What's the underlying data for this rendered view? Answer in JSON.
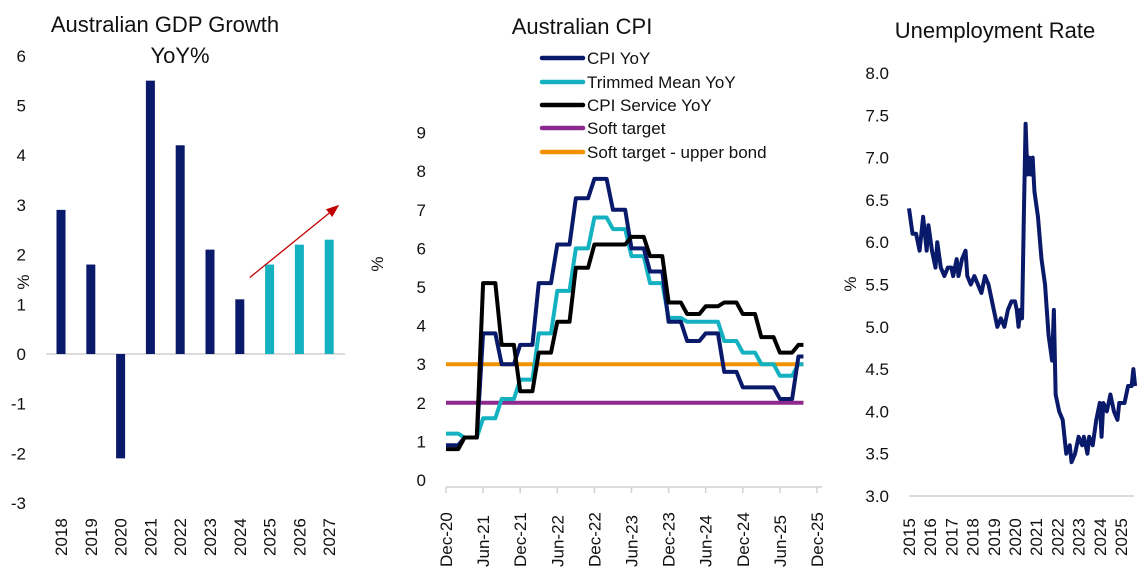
{
  "chart_data": [
    {
      "type": "bar",
      "title": [
        "Australian GDP Growth",
        "YoY%"
      ],
      "ylabel": "%",
      "ylim": [
        -3,
        6
      ],
      "yticks": [
        "-3",
        "-2",
        "-1",
        "0",
        "1",
        "2",
        "3",
        "4",
        "5",
        "6"
      ],
      "categories": [
        "2018",
        "2019",
        "2020",
        "2021",
        "2022",
        "2023",
        "2024",
        "2025",
        "2026",
        "2027"
      ],
      "values": [
        2.9,
        1.8,
        -2.1,
        5.5,
        4.2,
        2.1,
        1.1,
        1.8,
        2.2,
        2.3
      ],
      "bar_colors": [
        "#0a1a6b",
        "#0a1a6b",
        "#0a1a6b",
        "#0a1a6b",
        "#0a1a6b",
        "#0a1a6b",
        "#0a1a6b",
        "#14b1c1",
        "#14b1c1",
        "#14b1c1"
      ],
      "annotation": {
        "type": "arrow",
        "color": "#c00000",
        "from": {
          "x": "2024",
          "y": 1.5
        },
        "to": {
          "x": "2027",
          "y": 3.1
        }
      },
      "grid": false
    },
    {
      "type": "line",
      "title": "Australian CPI",
      "ylabel": "%",
      "ylim": [
        0,
        9
      ],
      "yticks": [
        "0",
        "1",
        "2",
        "3",
        "4",
        "5",
        "6",
        "7",
        "8",
        "9"
      ],
      "xticks": [
        "Dec-20",
        "Jun-21",
        "Dec-21",
        "Jun-22",
        "Dec-22",
        "Jun-23",
        "Dec-23",
        "Jun-24",
        "Dec-24",
        "Jun-25",
        "Dec-25"
      ],
      "x": [
        "Dec-20",
        "Mar-21",
        "Jun-21",
        "Sep-21",
        "Dec-21",
        "Mar-22",
        "Jun-22",
        "Sep-22",
        "Dec-22",
        "Mar-23",
        "Jun-23",
        "Sep-23",
        "Dec-23",
        "Mar-24",
        "Jun-24",
        "Sep-24",
        "Dec-24",
        "Mar-25",
        "Jun-25",
        "Sep-25"
      ],
      "legend_position": "top",
      "series": [
        {
          "name": "CPI YoY",
          "color": "#0a1a6b",
          "values": [
            0.9,
            1.1,
            3.8,
            3.0,
            3.5,
            5.1,
            6.1,
            7.3,
            7.8,
            7.0,
            6.0,
            5.4,
            4.1,
            3.6,
            3.8,
            2.8,
            2.4,
            2.4,
            2.1,
            3.2
          ]
        },
        {
          "name": "Trimmed Mean YoY",
          "color": "#14b1c1",
          "values": [
            1.2,
            1.1,
            1.6,
            2.1,
            2.6,
            3.8,
            4.9,
            6.0,
            6.8,
            6.5,
            5.8,
            5.1,
            4.2,
            4.1,
            4.1,
            3.6,
            3.3,
            3.0,
            2.7,
            3.0
          ]
        },
        {
          "name": "CPI Service YoY",
          "color": "#000000",
          "values": [
            0.8,
            1.1,
            5.1,
            3.5,
            2.3,
            3.3,
            4.1,
            5.5,
            6.1,
            6.1,
            6.3,
            5.8,
            4.6,
            4.3,
            4.5,
            4.6,
            4.3,
            3.7,
            3.3,
            3.5
          ]
        },
        {
          "name": "Soft target",
          "color": "#8e2a8e",
          "constant": 2
        },
        {
          "name": "Soft target - upper bond",
          "color": "#f39200",
          "constant": 3
        }
      ],
      "grid": false
    },
    {
      "type": "line",
      "title": "Unemployment Rate",
      "ylabel": "%",
      "ylim": [
        3.0,
        8.0
      ],
      "yticks": [
        "3.0",
        "3.5",
        "4.0",
        "4.5",
        "5.0",
        "5.5",
        "6.0",
        "6.5",
        "7.0",
        "7.5",
        "8.0"
      ],
      "xticks": [
        "2015",
        "2016",
        "2017",
        "2018",
        "2019",
        "2020",
        "2021",
        "2022",
        "2023",
        "2024",
        "2025"
      ],
      "series": [
        {
          "color": "#0a1a6b",
          "points": [
            [
              "2015-01",
              6.4
            ],
            [
              "2015-03",
              6.1
            ],
            [
              "2015-05",
              6.1
            ],
            [
              "2015-07",
              5.9
            ],
            [
              "2015-09",
              6.3
            ],
            [
              "2015-11",
              5.9
            ],
            [
              "2015-12",
              6.2
            ],
            [
              "2016-02",
              5.9
            ],
            [
              "2016-04",
              5.7
            ],
            [
              "2016-05",
              6.0
            ],
            [
              "2016-07",
              5.7
            ],
            [
              "2016-09",
              5.6
            ],
            [
              "2016-11",
              5.7
            ],
            [
              "2017-01",
              5.7
            ],
            [
              "2017-02",
              5.6
            ],
            [
              "2017-04",
              5.8
            ],
            [
              "2017-05",
              5.6
            ],
            [
              "2017-07",
              5.8
            ],
            [
              "2017-09",
              5.9
            ],
            [
              "2017-10",
              5.6
            ],
            [
              "2017-12",
              5.5
            ],
            [
              "2018-02",
              5.6
            ],
            [
              "2018-04",
              5.5
            ],
            [
              "2018-06",
              5.4
            ],
            [
              "2018-08",
              5.6
            ],
            [
              "2018-10",
              5.5
            ],
            [
              "2018-12",
              5.3
            ],
            [
              "2019-02",
              5.1
            ],
            [
              "2019-03",
              5.0
            ],
            [
              "2019-05",
              5.1
            ],
            [
              "2019-07",
              5.0
            ],
            [
              "2019-09",
              5.2
            ],
            [
              "2019-11",
              5.3
            ],
            [
              "2020-01",
              5.3
            ],
            [
              "2020-02",
              5.2
            ],
            [
              "2020-03",
              5.0
            ],
            [
              "2020-04",
              5.2
            ],
            [
              "2020-05",
              5.1
            ],
            [
              "2020-06",
              6.3
            ],
            [
              "2020-07",
              7.4
            ],
            [
              "2020-08",
              6.8
            ],
            [
              "2020-09",
              7.0
            ],
            [
              "2020-10",
              6.8
            ],
            [
              "2020-11",
              7.0
            ],
            [
              "2020-12",
              6.6
            ],
            [
              "2021-02",
              6.3
            ],
            [
              "2021-04",
              5.8
            ],
            [
              "2021-06",
              5.5
            ],
            [
              "2021-08",
              4.9
            ],
            [
              "2021-10",
              4.6
            ],
            [
              "2021-11",
              5.2
            ],
            [
              "2021-12",
              4.2
            ],
            [
              "2022-02",
              4.0
            ],
            [
              "2022-04",
              3.9
            ],
            [
              "2022-06",
              3.5
            ],
            [
              "2022-08",
              3.6
            ],
            [
              "2022-09",
              3.4
            ],
            [
              "2022-11",
              3.5
            ],
            [
              "2023-01",
              3.7
            ],
            [
              "2023-03",
              3.6
            ],
            [
              "2023-04",
              3.7
            ],
            [
              "2023-06",
              3.5
            ],
            [
              "2023-07",
              3.7
            ],
            [
              "2023-09",
              3.6
            ],
            [
              "2023-11",
              3.9
            ],
            [
              "2024-01",
              4.1
            ],
            [
              "2024-02",
              3.7
            ],
            [
              "2024-03",
              4.1
            ],
            [
              "2024-05",
              4.0
            ],
            [
              "2024-07",
              4.2
            ],
            [
              "2024-09",
              4.0
            ],
            [
              "2024-11",
              3.9
            ],
            [
              "2024-12",
              4.1
            ],
            [
              "2025-03",
              4.1
            ],
            [
              "2025-05",
              4.3
            ],
            [
              "2025-07",
              4.3
            ],
            [
              "2025-08",
              4.5
            ],
            [
              "2025-09",
              4.3
            ]
          ]
        }
      ],
      "grid": false
    }
  ]
}
